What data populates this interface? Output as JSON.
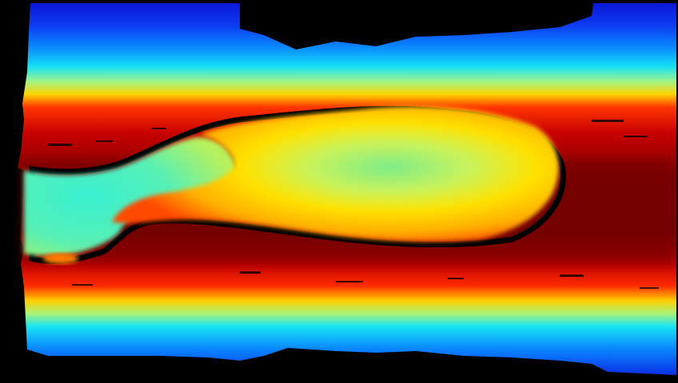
{
  "image": {
    "kind": "depth-map visualization",
    "colormap": "jet",
    "background_color": "#000000",
    "palette": [
      "#00008f",
      "#0000ff",
      "#00ffff",
      "#ffff00",
      "#ff0000",
      "#7f0000"
    ]
  }
}
